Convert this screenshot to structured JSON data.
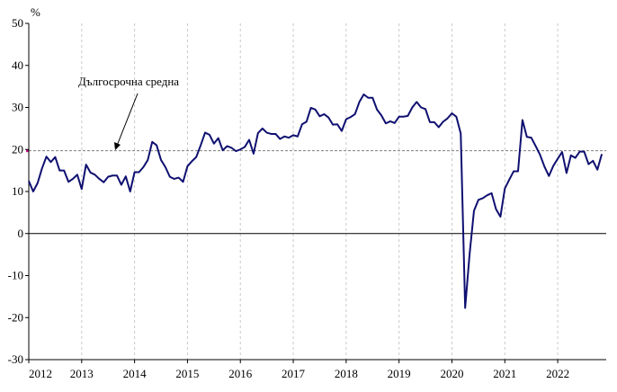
{
  "chart_data": {
    "type": "line",
    "title": "",
    "xlabel": "",
    "ylabel": "%",
    "ylim": [
      -30,
      50
    ],
    "yticks": [
      -30,
      -20,
      -10,
      0,
      10,
      20,
      30,
      40,
      50
    ],
    "ytick_labels": [
      "-30",
      "-20",
      "-10",
      "0",
      "10",
      "20",
      "30",
      "40",
      "50"
    ],
    "xlim": [
      2012,
      2022.9167
    ],
    "xticks": [
      2012,
      2013,
      2014,
      2015,
      2016,
      2017,
      2018,
      2019,
      2020,
      2021,
      2022
    ],
    "xtick_labels": [
      "2012",
      "2013",
      "2014",
      "2015",
      "2016",
      "2017",
      "2018",
      "2019",
      "2020",
      "2021",
      "2022"
    ],
    "grid": "vertical dashed at year ticks",
    "legend": "none",
    "colors": {
      "series": "#0f1070",
      "average_line": "#7f7f7f",
      "average_marker": "#c71585"
    },
    "reference_line": {
      "name": "Дългосрочна средна",
      "value": 19.7
    },
    "series": [
      {
        "name": "",
        "x_start": "2012-01",
        "frequency": "monthly",
        "values": [
          12.5,
          10.0,
          12.0,
          15.5,
          18.3,
          17.0,
          18.2,
          15.0,
          15.0,
          12.3,
          13.0,
          14.0,
          10.6,
          16.4,
          14.5,
          14.0,
          13.0,
          12.2,
          13.5,
          13.8,
          13.8,
          11.6,
          13.6,
          10.0,
          14.6,
          14.6,
          15.8,
          17.5,
          21.8,
          21.0,
          17.5,
          15.8,
          13.5,
          13.0,
          13.3,
          12.3,
          16.0,
          17.2,
          18.2,
          21.0,
          24.0,
          23.5,
          21.4,
          22.7,
          19.8,
          20.8,
          20.4,
          19.6,
          20.0,
          20.6,
          22.3,
          19.0,
          23.9,
          25.0,
          24.0,
          23.7,
          23.7,
          22.5,
          23.1,
          22.8,
          23.4,
          23.1,
          26.0,
          26.6,
          29.9,
          29.5,
          27.9,
          28.4,
          27.6,
          25.9,
          26.0,
          24.4,
          27.2,
          27.7,
          28.4,
          31.3,
          33.1,
          32.3,
          32.3,
          29.5,
          28.1,
          26.2,
          26.7,
          26.3,
          27.8,
          27.8,
          28.0,
          30.0,
          31.3,
          30.0,
          29.6,
          26.5,
          26.5,
          25.3,
          26.6,
          27.4,
          28.6,
          27.8,
          23.8,
          -17.7,
          -5.0,
          5.4,
          8.0,
          8.4,
          9.1,
          9.6,
          5.8,
          4.0,
          10.7,
          12.8,
          14.8,
          14.8,
          27.0,
          23.0,
          22.8,
          20.8,
          18.7,
          15.9,
          13.7,
          16.1,
          17.8,
          19.4,
          14.4,
          18.6,
          18.0,
          19.5,
          19.5,
          16.5,
          17.3,
          15.2,
          18.9
        ]
      }
    ]
  }
}
